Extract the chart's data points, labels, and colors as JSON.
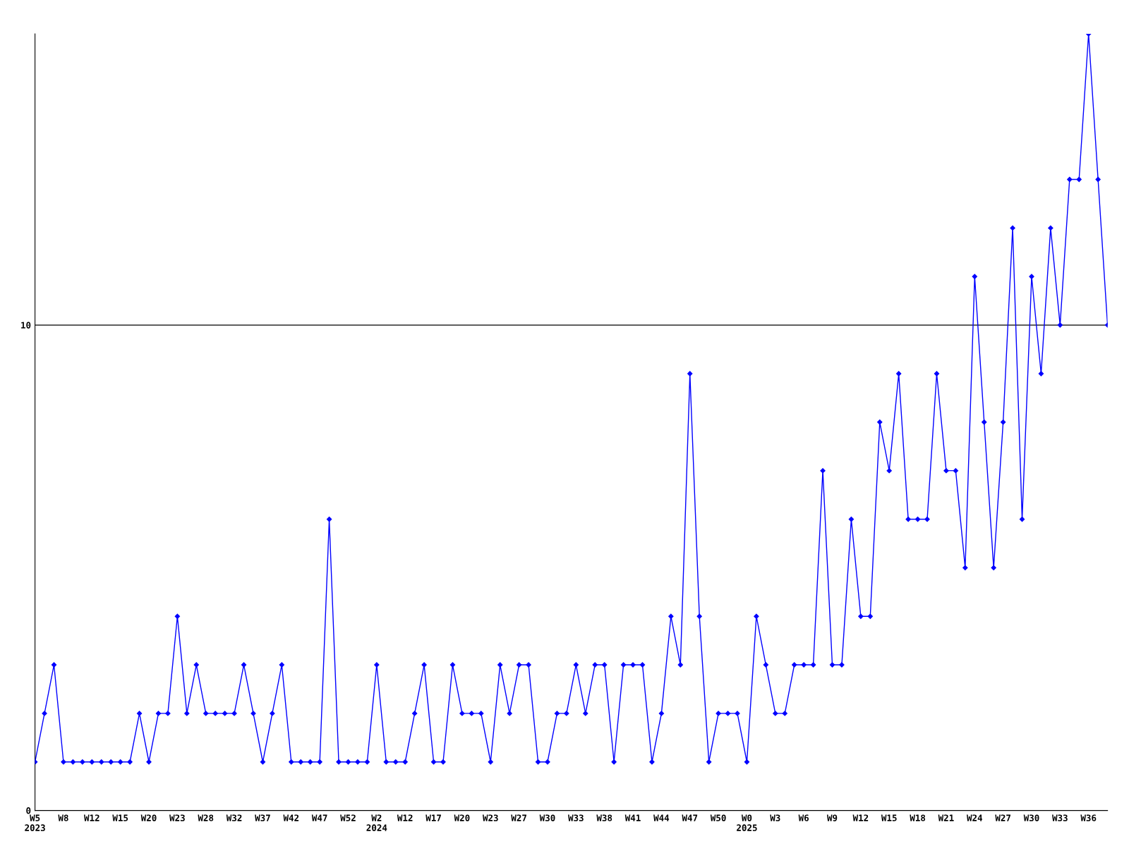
{
  "chart_data": {
    "type": "line",
    "categories": [
      "W5\n2023",
      null,
      null,
      "W8",
      null,
      null,
      "W12",
      null,
      null,
      "W15",
      null,
      null,
      "W20",
      null,
      null,
      "W23",
      null,
      null,
      "W28",
      null,
      null,
      "W32",
      null,
      null,
      "W37",
      null,
      null,
      "W42",
      null,
      null,
      "W47",
      null,
      null,
      "W52",
      null,
      null,
      "W2\n2024",
      null,
      null,
      "W12",
      null,
      null,
      "W17",
      null,
      null,
      "W20",
      null,
      null,
      "W23",
      null,
      null,
      "W27",
      null,
      null,
      "W30",
      null,
      null,
      "W33",
      null,
      null,
      "W38",
      null,
      null,
      "W41",
      null,
      null,
      "W44",
      null,
      null,
      "W47",
      null,
      null,
      "W50",
      null,
      null,
      "W0\n2025",
      null,
      null,
      "W3",
      null,
      null,
      "W6",
      null,
      null,
      "W9",
      null,
      null,
      "W12",
      null,
      null,
      "W15",
      null,
      null,
      "W18",
      null,
      null,
      "W21",
      null,
      null,
      "W24",
      null,
      null,
      "W27",
      null,
      null,
      "W30",
      null,
      null,
      "W33",
      null,
      null,
      "W36",
      null,
      null
    ],
    "series": [
      {
        "color": "#0000ff",
        "values": [
          1,
          2,
          3,
          1,
          1,
          1,
          1,
          1,
          1,
          1,
          1,
          2,
          1,
          2,
          2,
          4,
          2,
          3,
          2,
          2,
          2,
          2,
          3,
          2,
          1,
          2,
          3,
          1,
          1,
          1,
          1,
          6,
          1,
          1,
          1,
          1,
          3,
          1,
          1,
          1,
          2,
          3,
          1,
          1,
          3,
          2,
          2,
          2,
          1,
          3,
          2,
          3,
          3,
          1,
          1,
          2,
          2,
          3,
          2,
          3,
          3,
          1,
          3,
          3,
          3,
          1,
          2,
          4,
          3,
          9,
          4,
          1,
          2,
          2,
          2,
          1,
          4,
          3,
          2,
          2,
          3,
          3,
          3,
          7,
          3,
          3,
          6,
          4,
          4,
          8,
          7,
          9,
          6,
          6,
          6,
          9,
          7,
          7,
          5,
          11,
          8,
          5,
          8,
          12,
          6,
          11,
          9,
          12,
          10,
          13,
          13,
          16,
          13,
          10
        ]
      }
    ],
    "ylim": [
      0,
      16
    ],
    "yticks": [
      0,
      10
    ],
    "grid": "y",
    "marker": "diamond",
    "line_style": "solid",
    "legend": false
  }
}
